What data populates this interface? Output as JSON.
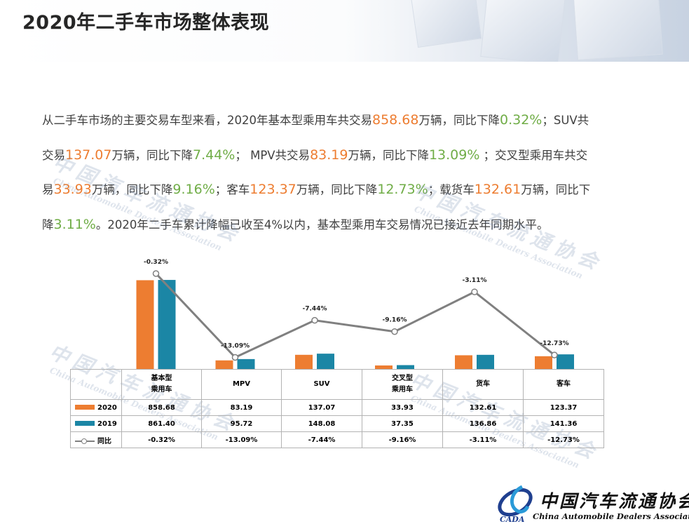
{
  "page": {
    "title": "2020年二手车市场整体表现"
  },
  "paragraph": [
    {
      "t": "从二手车市场的主要交易车型来看，2020年基本型乘用车共交易",
      "c": ""
    },
    {
      "t": "858.68",
      "c": "o"
    },
    {
      "t": "万辆，同比下降",
      "c": ""
    },
    {
      "t": "0.32%",
      "c": "g"
    },
    {
      "t": "；SUV共交易",
      "c": ""
    },
    {
      "t": "137.07",
      "c": "o"
    },
    {
      "t": "万辆，同比下降",
      "c": ""
    },
    {
      "t": "7.44%",
      "c": "g"
    },
    {
      "t": "； MPV共交易",
      "c": ""
    },
    {
      "t": "83.19",
      "c": "o"
    },
    {
      "t": "万辆，同比下降",
      "c": ""
    },
    {
      "t": "13.09%",
      "c": "g"
    },
    {
      "t": " ；交叉型乘用车共交易",
      "c": ""
    },
    {
      "t": "33.93",
      "c": "o"
    },
    {
      "t": "万辆，同比下降",
      "c": ""
    },
    {
      "t": "9.16%",
      "c": "g"
    },
    {
      "t": "；客车",
      "c": ""
    },
    {
      "t": "123.37",
      "c": "o"
    },
    {
      "t": "万辆，同比下降",
      "c": ""
    },
    {
      "t": "12.73%",
      "c": "g"
    },
    {
      "t": "；载货车",
      "c": ""
    },
    {
      "t": "132.61",
      "c": "o"
    },
    {
      "t": "万辆，同比下降",
      "c": ""
    },
    {
      "t": "3.11%",
      "c": "g"
    },
    {
      "t": "。2020年二手车累计降幅已收至4%以内，基本型乘用车交易情况已接近去年同期水平。",
      "c": ""
    }
  ],
  "watermark": {
    "cn": "中国汽车流通协会",
    "en": "China Automobile Dealers Association",
    "abbr": "CADA"
  },
  "chart_data": {
    "type": "bar",
    "categories": [
      [
        "基本型",
        "乘用车"
      ],
      [
        "MPV"
      ],
      [
        "SUV"
      ],
      [
        "交叉型",
        "乘用车"
      ],
      [
        "货车"
      ],
      [
        "客车"
      ]
    ],
    "series": [
      {
        "name": "2020",
        "color": "#ed7d31",
        "values": [
          858.68,
          83.19,
          137.07,
          33.93,
          132.61,
          123.37
        ],
        "display": [
          "858.68",
          "83.19",
          "137.07",
          "33.93",
          "132.61",
          "123.37"
        ]
      },
      {
        "name": "2019",
        "color": "#1b86a5",
        "values": [
          861.4,
          95.72,
          148.08,
          37.35,
          136.86,
          141.36
        ],
        "display": [
          "861.40",
          "95.72",
          "148.08",
          "37.35",
          "136.86",
          "141.36"
        ]
      }
    ],
    "line": {
      "name": "同比",
      "color": "#808080",
      "values": [
        -0.32,
        -13.09,
        -7.44,
        -9.16,
        -3.11,
        -12.73
      ],
      "labels": [
        "-0.32%",
        "-13.09%",
        "-7.44%",
        "-9.16%",
        "-3.11%",
        "-12.73%"
      ],
      "range": [
        -14,
        0
      ]
    },
    "ylim": [
      0,
      950
    ],
    "data_table": true,
    "legend": "in data table"
  },
  "footer_logo": {
    "cn": "中国汽车流通协会",
    "en": "China Automobile Dealers Association",
    "abbr": "CADA"
  }
}
